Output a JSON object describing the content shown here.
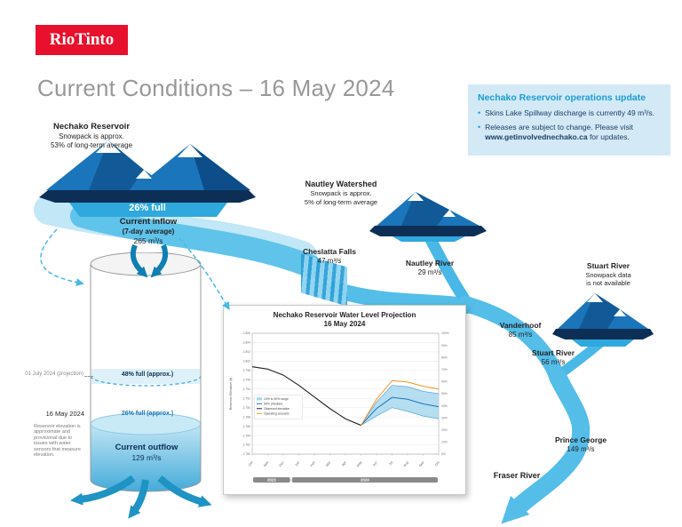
{
  "brand": {
    "logo_text": "RioTinto"
  },
  "page": {
    "title": "Current Conditions – 16 May 2024"
  },
  "update_box": {
    "heading": "Nechako Reservoir operations update",
    "bullets": [
      {
        "text": "Skins Lake Spillway discharge is currently 49 m³/s."
      },
      {
        "text_before": "Releases are subject to change. Please visit ",
        "link": "www.getinvolvednechako.ca",
        "text_after": " for updates."
      }
    ]
  },
  "reservoir": {
    "name": "Nechako Reservoir",
    "line1": "Snowpack is approx.",
    "line2": "53% of long-term average",
    "fill_label": "26% full"
  },
  "inflow": {
    "label": "Current inflow",
    "sublabel": "(7-day average)",
    "value": "265 m³/s"
  },
  "cylinder": {
    "projection_date": "01 July 2024 (projection)",
    "projection_level": "48% full (approx.)",
    "current_date": "16 May 2024",
    "current_level": "26% full (approx.)",
    "note": "Reservoir elevation is approximate and provisional due to issues with water sensors that measure elevation."
  },
  "outflow": {
    "label": "Current outflow",
    "value": "129 m³/s"
  },
  "nautley_watershed": {
    "name": "Nautley Watershed",
    "line1": "Snowpack is approx.",
    "line2": "5% of long-term average"
  },
  "stuart_watershed": {
    "name": "Stuart River",
    "line1": "Snowpack data",
    "line2": "is not available"
  },
  "stations": {
    "cheslatta": {
      "name": "Cheslatta Falls",
      "value": "47 m³/s"
    },
    "nautley_river": {
      "name": "Nautley River",
      "value": "29 m³/s"
    },
    "vanderhoof": {
      "name": "Vanderhoof",
      "value": "85 m³/s"
    },
    "stuart_river": {
      "name": "Stuart River",
      "value": "56 m³/s"
    },
    "prince_george": {
      "name": "Prince George",
      "value": "149 m³/s"
    },
    "fraser_river": {
      "name": "Fraser River"
    }
  },
  "colors": {
    "brand_red": "#e8112d",
    "accent_blue": "#199cd8",
    "water_light": "#8fd4f0",
    "water": "#54bee9",
    "water_dark": "#1e93c4",
    "mountain": "#1b75bb",
    "navy": "#0d2f56",
    "band_blue": "#2fa8de",
    "projection_orange": "#f7941d",
    "title_gray": "#98989a"
  },
  "chart_data": {
    "type": "line",
    "title": "Nechako Reservoir Water Level Projection",
    "subtitle": "16 May 2024",
    "ylabel_left": "Reservoir Elevation (ft)",
    "ylim": [
      2780,
      2806
    ],
    "ytick_step": 2,
    "right_ticks": [
      "100%",
      "90%",
      "80%",
      "70%",
      "60%",
      "50%",
      "40%",
      "30%",
      "20%",
      "10%",
      "0%"
    ],
    "months": [
      "Oct",
      "Nov",
      "Dec",
      "Jan",
      "Feb",
      "Mar",
      "Apr",
      "May",
      "Jun",
      "Jul",
      "Aug",
      "Sep",
      "Oct"
    ],
    "year_bars": [
      {
        "label": "2023",
        "span": [
          0,
          2.5
        ]
      },
      {
        "label": "2024",
        "span": [
          2.5,
          12
        ]
      }
    ],
    "series": [
      {
        "name": "Observed elevation",
        "color": "#231f20",
        "width": 1.1,
        "values": [
          2798.8,
          2798.3,
          2797.0,
          2794.8,
          2792.3,
          2789.8,
          2787.6,
          2786.2,
          null,
          null,
          null,
          null,
          null
        ]
      },
      {
        "name": "90% projection",
        "color": "#5aa7d4",
        "width": 0.7,
        "values": [
          null,
          null,
          null,
          null,
          null,
          null,
          null,
          2786.2,
          2791.2,
          2794.8,
          2794.5,
          2793.5,
          2793.0
        ]
      },
      {
        "name": "10% projection",
        "color": "#5aa7d4",
        "width": 0.7,
        "values": [
          null,
          null,
          null,
          null,
          null,
          null,
          null,
          2786.2,
          2788.2,
          2790.0,
          2789.2,
          2788.2,
          2787.6
        ]
      },
      {
        "name": "50% (median) projection",
        "color": "#1b75bb",
        "width": 1.0,
        "values": [
          null,
          null,
          null,
          null,
          null,
          null,
          null,
          2786.2,
          2789.8,
          2792.2,
          2791.8,
          2790.8,
          2790.2
        ]
      },
      {
        "name": "2024 operating scenario",
        "color": "#f7941d",
        "width": 1.0,
        "values": [
          null,
          null,
          null,
          null,
          null,
          null,
          null,
          2786.2,
          2791.8,
          2795.8,
          2795.5,
          2794.6,
          2794.0
        ]
      }
    ],
    "band": {
      "upper_series": 1,
      "lower_series": 2,
      "fill": "#a8d8ef"
    },
    "legend": [
      {
        "type": "box",
        "color": "#a8d8ef",
        "label": "10% to 90% range"
      },
      {
        "type": "line",
        "color": "#1b75bb",
        "label": "50% (median)"
      },
      {
        "type": "line",
        "color": "#231f20",
        "label": "Observed elevation"
      },
      {
        "type": "line",
        "color": "#f7941d",
        "label": "Operating scenario"
      }
    ]
  }
}
